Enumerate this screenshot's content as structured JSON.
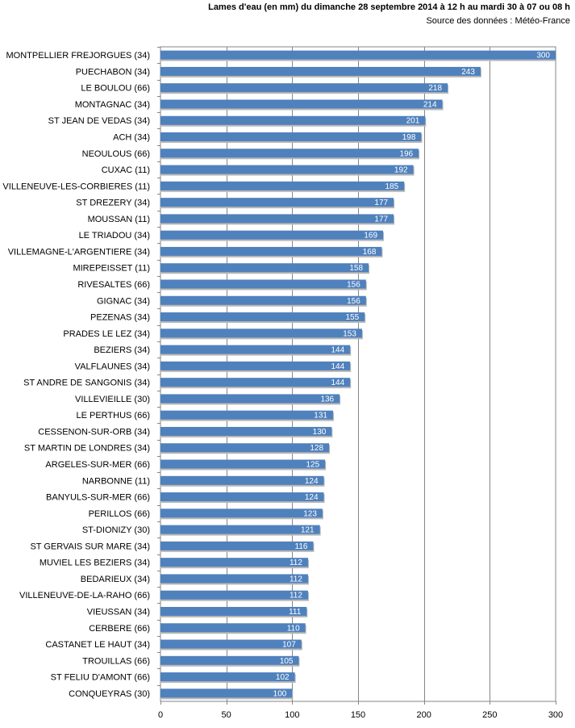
{
  "chart_data": {
    "type": "bar",
    "orientation": "horizontal",
    "title": "Lames d'eau (en mm) du dimanche  28 septembre 2014 à 12 h au mardi 30 à 07 ou 08 h",
    "subtitle": "Source des données : Météo-France",
    "xlabel": "",
    "ylabel": "",
    "xlim": [
      0,
      300
    ],
    "xticks": [
      "0",
      "50",
      "100",
      "150",
      "200",
      "250",
      "300"
    ],
    "grid": true,
    "bar_color": "#4f81bd",
    "categories": [
      "MONTPELLIER FREJORGUES (34)",
      "PUECHABON (34)",
      "LE BOULOU (66)",
      "MONTAGNAC (34)",
      "ST JEAN DE VEDAS (34)",
      "ACH (34)",
      "NEOULOUS (66)",
      "CUXAC (11)",
      "VILLENEUVE-LES-CORBIERES (11)",
      "ST DREZERY (34)",
      "MOUSSAN (11)",
      "LE TRIADOU (34)",
      "VILLEMAGNE-L'ARGENTIERE (34)",
      "MIREPEISSET (11)",
      "RIVESALTES (66)",
      "GIGNAC (34)",
      "PEZENAS (34)",
      "PRADES LE LEZ (34)",
      "BEZIERS (34)",
      "VALFLAUNES (34)",
      "ST ANDRE DE SANGONIS (34)",
      "VILLEVIEILLE (30)",
      "LE PERTHUS (66)",
      "CESSENON-SUR-ORB (34)",
      "ST MARTIN DE LONDRES (34)",
      "ARGELES-SUR-MER (66)",
      "NARBONNE (11)",
      "BANYULS-SUR-MER (66)",
      "PERILLOS (66)",
      "ST-DIONIZY (30)",
      "ST GERVAIS SUR MARE (34)",
      "MUVIEL LES BEZIERS (34)",
      "BEDARIEUX (34)",
      "VILLENEUVE-DE-LA-RAHO (66)",
      "VIEUSSAN (34)",
      "CERBERE (66)",
      "CASTANET LE HAUT (34)",
      "TROUILLAS (66)",
      "ST FELIU D'AMONT (66)",
      "CONQUEYRAS (30)"
    ],
    "values": [
      300,
      243,
      218,
      214,
      201,
      198,
      196,
      192,
      185,
      177,
      177,
      169,
      168,
      158,
      156,
      156,
      155,
      153,
      144,
      144,
      144,
      136,
      131,
      130,
      128,
      125,
      124,
      124,
      123,
      121,
      116,
      112,
      112,
      112,
      111,
      110,
      107,
      105,
      102,
      100
    ]
  }
}
